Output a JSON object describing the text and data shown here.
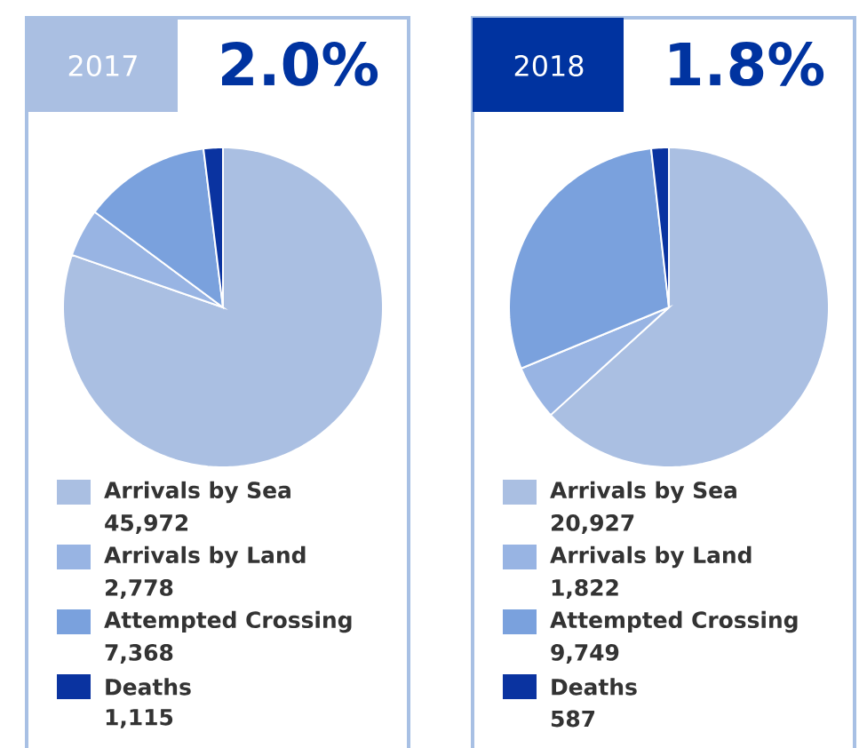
{
  "chart_data": [
    {
      "type": "pie",
      "title": "2017",
      "annotations": [
        "2.0%"
      ],
      "legend": "bottom",
      "categories": [
        "Arrivals by Sea",
        "Arrivals by Land",
        "Attempted Crossing",
        "Deaths"
      ],
      "values": [
        45972,
        2778,
        7368,
        1115
      ],
      "value_labels": [
        "45,972",
        "2,778",
        "7,368",
        "1,115"
      ],
      "colors": [
        "#aabfe2",
        "#98b4e3",
        "#7aa1dd",
        "#0a33a0"
      ]
    },
    {
      "type": "pie",
      "title": "2018",
      "annotations": [
        "1.8%"
      ],
      "legend": "bottom",
      "categories": [
        "Arrivals by Sea",
        "Arrivals by Land",
        "Attempted Crossing",
        "Deaths"
      ],
      "values": [
        20927,
        1822,
        9749,
        587
      ],
      "value_labels": [
        "20,927",
        "1,822",
        "9,749",
        "587"
      ],
      "colors": [
        "#aabfe2",
        "#98b4e3",
        "#7aa1dd",
        "#0a33a0"
      ]
    }
  ]
}
